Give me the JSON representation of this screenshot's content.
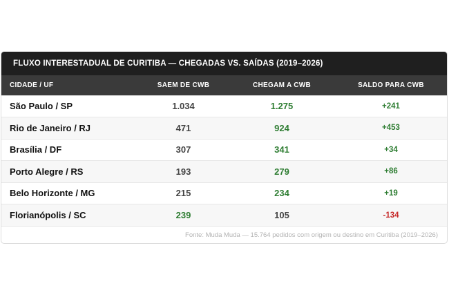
{
  "table": {
    "title": "FLUXO INTERESTADUAL DE CURITIBA — CHEGADAS VS. SAÍDAS (2019–2026)",
    "columns": [
      "CIDADE / UF",
      "SAEM DE CWB",
      "CHEGAM A CWB",
      "SALDO PARA CWB"
    ],
    "footer": "Fonte: Muda Muda — 15.764 pedidos com origem ou destino em Curitiba (2019–2026)"
  },
  "chart_data": {
    "type": "table",
    "title": "FLUXO INTERESTADUAL DE CURITIBA — CHEGADAS VS. SAÍDAS (2019–2026)",
    "columns": [
      "CIDADE / UF",
      "SAEM DE CWB",
      "CHEGAM A CWB",
      "SALDO PARA CWB"
    ],
    "rows": [
      {
        "city": "São Paulo / SP",
        "out": "1.034",
        "in": "1.275",
        "balance": "+241",
        "higher": "in",
        "sign": "pos"
      },
      {
        "city": "Rio de Janeiro / RJ",
        "out": "471",
        "in": "924",
        "balance": "+453",
        "higher": "in",
        "sign": "pos"
      },
      {
        "city": "Brasília / DF",
        "out": "307",
        "in": "341",
        "balance": "+34",
        "higher": "in",
        "sign": "pos"
      },
      {
        "city": "Porto Alegre / RS",
        "out": "193",
        "in": "279",
        "balance": "+86",
        "higher": "in",
        "sign": "pos"
      },
      {
        "city": "Belo Horizonte / MG",
        "out": "215",
        "in": "234",
        "balance": "+19",
        "higher": "in",
        "sign": "pos"
      },
      {
        "city": "Florianópolis / SC",
        "out": "239",
        "in": "105",
        "balance": "-134",
        "higher": "out",
        "sign": "neg"
      }
    ],
    "colors": {
      "higher": "#2e7d32",
      "positive": "#2e7d32",
      "negative": "#c62828",
      "header": "#1f1f1f"
    }
  }
}
